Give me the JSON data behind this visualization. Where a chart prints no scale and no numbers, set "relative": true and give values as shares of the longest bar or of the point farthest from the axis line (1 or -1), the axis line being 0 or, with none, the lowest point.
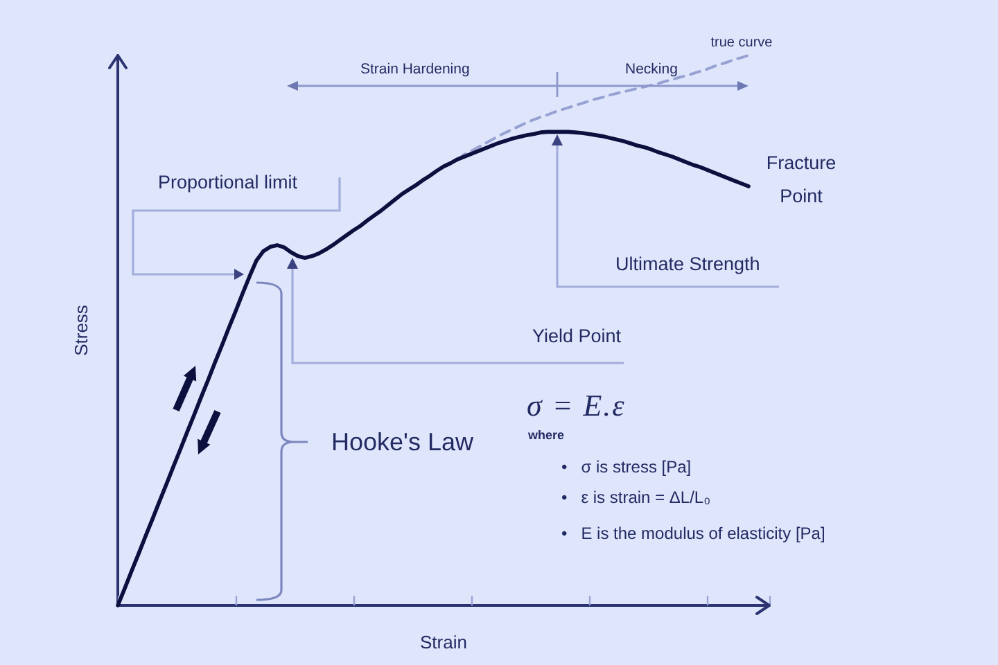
{
  "chart_data": {
    "type": "line",
    "relative": true,
    "xlabel": "Strain",
    "ylabel": "Stress",
    "marker": "none",
    "categories": [
      null,
      null,
      null,
      null,
      null,
      null,
      null,
      null,
      null,
      null,
      null,
      null,
      null,
      null,
      null,
      null,
      null,
      null,
      null,
      null,
      null,
      null,
      null,
      null,
      null,
      null,
      null,
      null,
      null,
      null,
      null,
      null,
      null,
      null,
      null,
      null,
      null,
      null,
      null,
      null,
      null,
      null,
      null,
      null,
      null,
      null,
      null,
      null,
      null,
      null,
      null,
      null,
      null,
      null,
      null,
      null,
      null,
      null,
      null,
      null,
      null,
      null,
      null,
      null,
      null,
      null,
      null,
      null,
      null,
      null,
      null,
      null,
      null,
      null,
      null,
      null,
      null,
      null,
      null,
      null,
      null,
      null,
      null,
      null,
      null,
      null,
      null,
      null,
      null,
      null,
      null,
      null,
      null,
      null,
      null
    ],
    "series": [
      {
        "color": "#0b103f",
        "line_style": "solid",
        "values": [
          0,
          0.031,
          0.063,
          0.094,
          0.126,
          0.157,
          0.189,
          0.22,
          0.252,
          0.283,
          0.315,
          0.346,
          0.378,
          0.409,
          0.441,
          0.472,
          0.504,
          0.535,
          0.567,
          0.598,
          0.627,
          0.644,
          0.652,
          0.655,
          0.651,
          0.642,
          0.635,
          0.632,
          0.635,
          0.64,
          0.647,
          0.655,
          0.664,
          0.673,
          0.682,
          0.69,
          0.7,
          0.709,
          0.718,
          0.728,
          0.738,
          0.748,
          0.756,
          0.764,
          0.773,
          0.781,
          0.79,
          0.798,
          0.804,
          0.811,
          0.816,
          0.821,
          0.826,
          0.831,
          0.836,
          0.841,
          0.845,
          0.849,
          0.852,
          0.855,
          0.857,
          0.86,
          0.861,
          0.861,
          0.861,
          0.861,
          0.86,
          0.859,
          0.857,
          0.855,
          0.853,
          0.85,
          0.847,
          0.844,
          0.84,
          0.836,
          0.833,
          0.829,
          0.824,
          0.82,
          0.816,
          0.811,
          0.806,
          0.801,
          0.797,
          0.792,
          0.787,
          0.782,
          0.777,
          0.772,
          0.767,
          0.762,
          null,
          null,
          null
        ]
      },
      {
        "name": "true curve",
        "color": "#97a2d3",
        "line_style": "dashed",
        "values": [
          null,
          null,
          null,
          null,
          null,
          null,
          null,
          null,
          null,
          null,
          null,
          null,
          null,
          null,
          null,
          null,
          null,
          null,
          null,
          null,
          null,
          null,
          null,
          null,
          null,
          null,
          null,
          null,
          null,
          null,
          null,
          null,
          null,
          null,
          null,
          null,
          null,
          null,
          null,
          null,
          null,
          null,
          null,
          null,
          null,
          null,
          null,
          null,
          null,
          0.811,
          0.82,
          0.826,
          0.833,
          0.84,
          0.847,
          0.854,
          0.86,
          0.866,
          0.872,
          0.878,
          0.883,
          0.888,
          0.892,
          0.897,
          0.901,
          0.905,
          0.909,
          0.913,
          0.917,
          0.921,
          0.924,
          0.928,
          0.931,
          0.934,
          0.937,
          0.94,
          0.943,
          0.946,
          0.949,
          0.953,
          0.956,
          0.96,
          0.963,
          0.967,
          0.971,
          0.975,
          0.98,
          0.984,
          0.988,
          0.993,
          0.996,
          1,
          null,
          null,
          null
        ]
      }
    ],
    "annotations": [
      "Strain Hardening",
      "Necking",
      "Proportional limit",
      "Ultimate Strength",
      "Yield Point",
      "Fracture Point",
      "Hooke's Law",
      "σ = E.ε",
      "where",
      "• σ is stress [Pa]",
      "• ε is strain = ΔL/L₀",
      "• E is the modulus of elasticity [Pa]"
    ]
  }
}
